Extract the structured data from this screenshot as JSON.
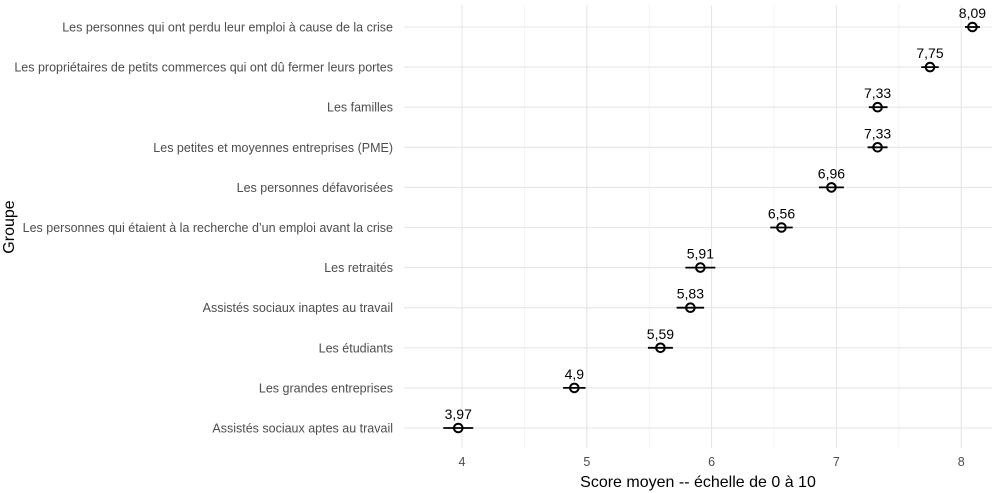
{
  "chart_data": {
    "type": "scatter",
    "orientation": "horizontal",
    "title": "",
    "xlabel": "Score moyen -- échelle de 0 à 10",
    "ylabel": "Groupe",
    "xlim": [
      3.6,
      8.4
    ],
    "x_ticks": [
      4,
      5,
      6,
      7,
      8
    ],
    "grid": true,
    "legend": "none",
    "categories": [
      "Les personnes qui ont perdu leur emploi à cause de la crise",
      "Les propriétaires de petits commerces qui ont dû fermer leurs portes",
      "Les familles",
      "Les petites et moyennes entreprises (PME)",
      "Les personnes défavorisées",
      "Les personnes qui étaient à la recherche d’un emploi avant la crise",
      "Les retraités",
      "Assistés sociaux inaptes au travail",
      "Les étudiants",
      "Les grandes entreprises",
      "Assistés sociaux aptes au travail"
    ],
    "values": [
      8.09,
      7.75,
      7.33,
      7.33,
      6.96,
      6.56,
      5.91,
      5.83,
      5.59,
      4.9,
      3.97
    ],
    "value_labels": [
      "8,09",
      "7,75",
      "7,33",
      "7,33",
      "6,96",
      "6,56",
      "5,91",
      "5,83",
      "5,59",
      "4,9",
      "3,97"
    ],
    "error_low": [
      8.03,
      7.68,
      7.26,
      7.25,
      6.86,
      6.47,
      5.79,
      5.72,
      5.49,
      4.81,
      3.85
    ],
    "error_high": [
      8.15,
      7.82,
      7.41,
      7.41,
      7.06,
      6.65,
      6.03,
      5.94,
      5.69,
      4.99,
      4.09
    ],
    "colors": {
      "marks": "#000000",
      "grid": "#e6e6e6",
      "text": "#4d4d4d"
    }
  }
}
